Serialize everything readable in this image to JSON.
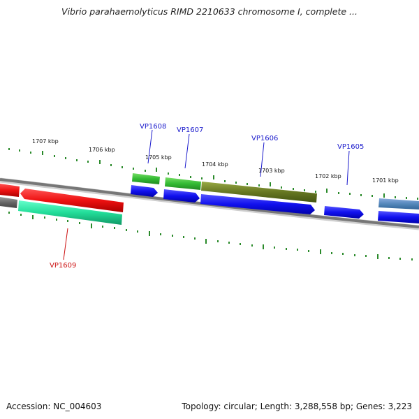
{
  "title": "Vibrio parahaemolyticus RIMD 2210633 chromosome I, complete ...",
  "footer": {
    "accession": "Accession: NC_004603",
    "summary": "Topology: circular; Length: 3,288,558 bp; Genes: 3,223"
  },
  "ticks": [
    {
      "label": "1707 kbp"
    },
    {
      "label": "1706 kbp"
    },
    {
      "label": "1705 kbp"
    },
    {
      "label": "1704 kbp"
    },
    {
      "label": "1703 kbp"
    },
    {
      "label": "1702 kbp"
    },
    {
      "label": "1701 kbp"
    }
  ],
  "genes": [
    {
      "name": "VP1608",
      "color": "#1a1acc"
    },
    {
      "name": "VP1607",
      "color": "#1a1acc"
    },
    {
      "name": "VP1606",
      "color": "#1a1acc"
    },
    {
      "name": "VP1605",
      "color": "#1a1acc"
    },
    {
      "name": "VP1609",
      "color": "#cc1111"
    }
  ],
  "colors": {
    "forward_cds": "#1111dd",
    "reverse_cds": "#ee1111",
    "gc_green": "#33bb33",
    "gc_olive": "#667722",
    "gc_teal": "#22dd99",
    "gc_steel": "#5588bb",
    "backbone": "#777777",
    "tick": "#2a8a2a"
  }
}
